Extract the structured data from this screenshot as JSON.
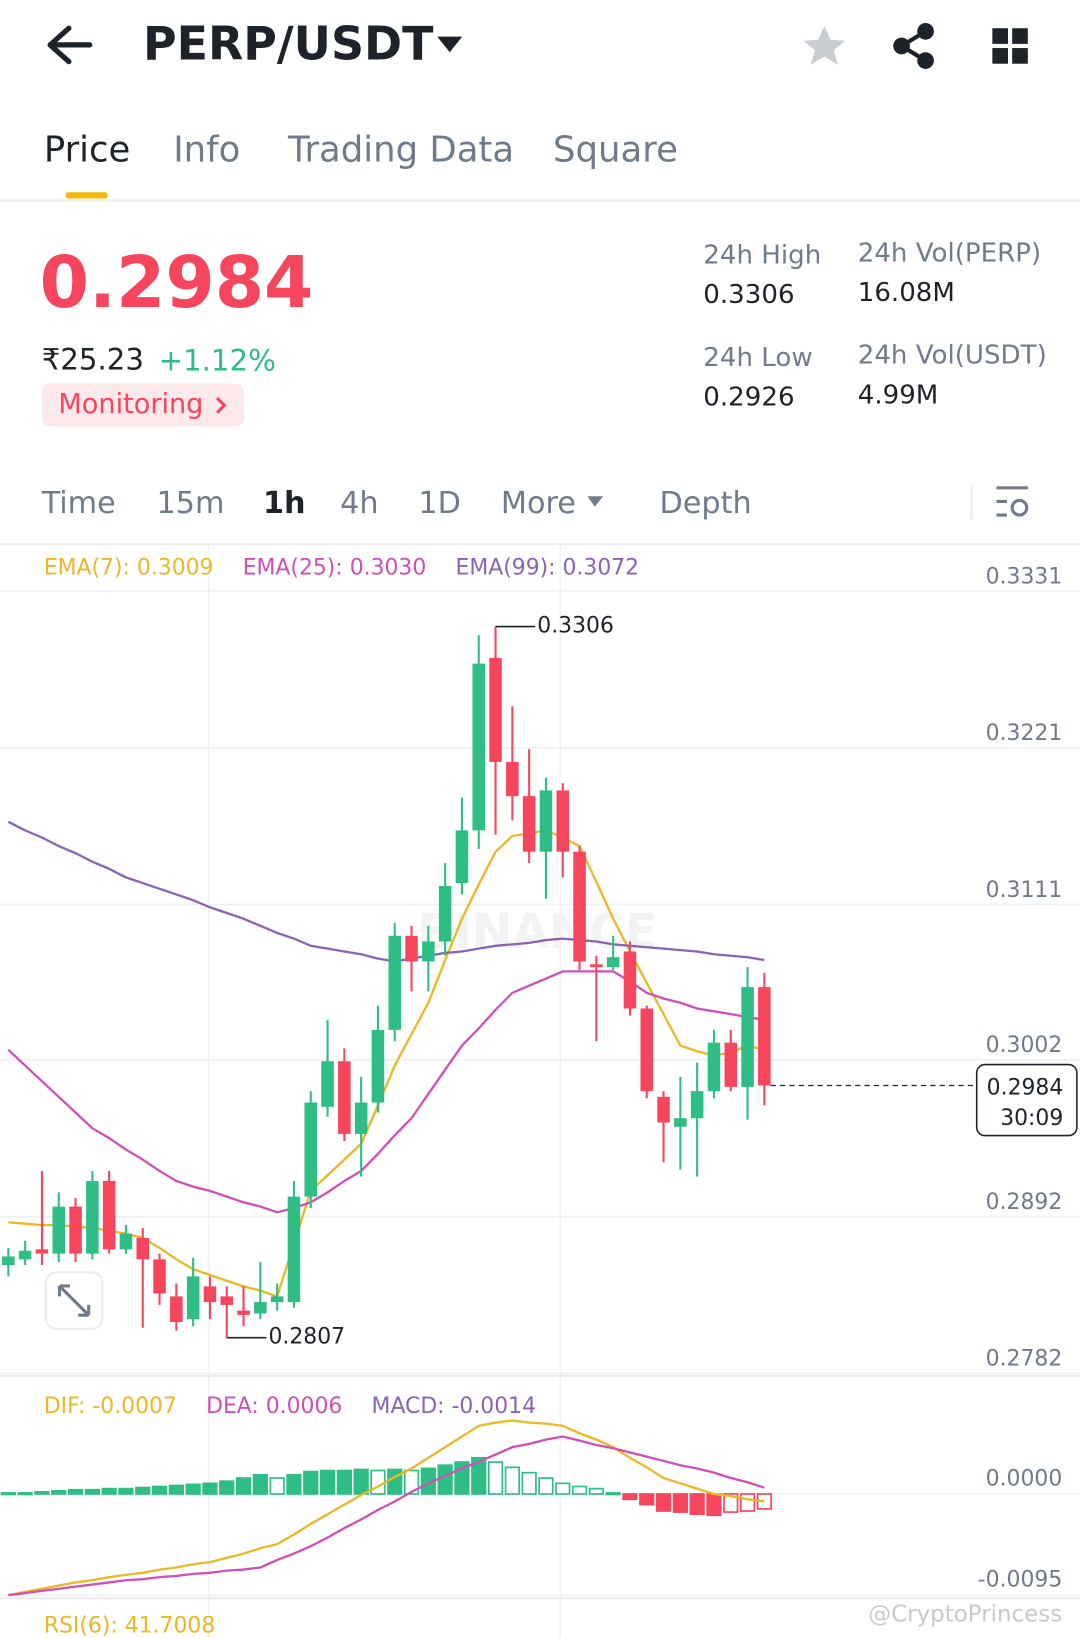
{
  "header": {
    "pair": "PERP/USDT"
  },
  "tabs": [
    "Price",
    "Info",
    "Trading Data",
    "Square"
  ],
  "price": {
    "last": "0.2984",
    "inr": "₹25.23",
    "change": "+1.12%",
    "monitoring": "Monitoring"
  },
  "stats": [
    {
      "label": "24h High",
      "value": "0.3306"
    },
    {
      "label": "24h Vol(PERP)",
      "value": "16.08M"
    },
    {
      "label": "24h Low",
      "value": "0.2926"
    },
    {
      "label": "24h Vol(USDT)",
      "value": "4.99M"
    }
  ],
  "intervals": [
    "Time",
    "15m",
    "1h",
    "4h",
    "1D",
    "More",
    "Depth"
  ],
  "watermark": "BINANCE",
  "credit": "@CryptoPrincess",
  "chart_data": [
    {
      "type": "candlestick",
      "up_color": "#2ebd85",
      "down_color": "#f6465d",
      "open": [
        0.2858,
        0.2862,
        0.2869,
        0.2866,
        0.2899,
        0.2866,
        0.2917,
        0.2869,
        0.2877,
        0.2862,
        0.2836,
        0.282,
        0.2843,
        0.2836,
        0.2826,
        0.2824,
        0.2832,
        0.2832,
        0.2906,
        0.2969,
        0.3001,
        0.295,
        0.2972,
        0.3023,
        0.3089,
        0.3071,
        0.3085,
        0.3126,
        0.3163,
        0.3284,
        0.3211,
        0.3187,
        0.3148,
        0.3191,
        0.3148,
        0.3069,
        0.3067,
        0.3078,
        0.3038,
        0.2976,
        0.2955,
        0.2961,
        0.298,
        0.3014,
        0.2983,
        0.3053
      ],
      "high": [
        0.287,
        0.2875,
        0.2924,
        0.2909,
        0.2905,
        0.2924,
        0.2924,
        0.2886,
        0.2884,
        0.2866,
        0.2845,
        0.2863,
        0.285,
        0.2843,
        0.2843,
        0.286,
        0.2845,
        0.2917,
        0.298,
        0.303,
        0.301,
        0.299,
        0.304,
        0.3098,
        0.3096,
        0.3096,
        0.314,
        0.3186,
        0.33,
        0.3306,
        0.325,
        0.322,
        0.32,
        0.3196,
        0.3152,
        0.3075,
        0.3089,
        0.3085,
        0.304,
        0.298,
        0.299,
        0.3,
        0.3023,
        0.3023,
        0.3067,
        0.3063
      ],
      "low": [
        0.285,
        0.2858,
        0.2858,
        0.286,
        0.286,
        0.2862,
        0.2866,
        0.2866,
        0.2814,
        0.283,
        0.2812,
        0.2815,
        0.282,
        0.2807,
        0.2815,
        0.282,
        0.2826,
        0.2828,
        0.2898,
        0.2962,
        0.2945,
        0.292,
        0.2965,
        0.3015,
        0.305,
        0.305,
        0.3075,
        0.3118,
        0.315,
        0.316,
        0.317,
        0.314,
        0.3115,
        0.313,
        0.3065,
        0.3015,
        0.3065,
        0.3033,
        0.2975,
        0.293,
        0.2925,
        0.292,
        0.2975,
        0.298,
        0.296,
        0.297
      ],
      "close": [
        0.2864,
        0.2868,
        0.2866,
        0.2899,
        0.2866,
        0.2917,
        0.2869,
        0.288,
        0.2862,
        0.2838,
        0.2818,
        0.285,
        0.2832,
        0.283,
        0.2823,
        0.2832,
        0.2836,
        0.2906,
        0.2972,
        0.3001,
        0.295,
        0.2972,
        0.3023,
        0.3089,
        0.3071,
        0.3085,
        0.3124,
        0.3163,
        0.328,
        0.3211,
        0.3187,
        0.3148,
        0.3191,
        0.3148,
        0.3071,
        0.3067,
        0.3074,
        0.3038,
        0.298,
        0.2958,
        0.2961,
        0.298,
        0.3014,
        0.2983,
        0.3053,
        0.2984
      ],
      "series": [
        {
          "name": "EMA(7): 0.3009",
          "color": "#e9b824",
          "values": [
            0.2888,
            0.2887,
            0.2886,
            0.2886,
            0.2885,
            0.2884,
            0.2882,
            0.288,
            0.2877,
            0.287,
            0.2862,
            0.2855,
            0.2851,
            0.2847,
            0.2843,
            0.284,
            0.2836,
            0.2873,
            0.291,
            0.2921,
            0.2932,
            0.2943,
            0.297,
            0.2998,
            0.302,
            0.3042,
            0.3072,
            0.3101,
            0.3125,
            0.3148,
            0.3159,
            0.3161,
            0.3163,
            0.3158,
            0.3152,
            0.3127,
            0.3101,
            0.3078,
            0.3056,
            0.3034,
            0.3012,
            0.3008,
            0.3005,
            0.3007,
            0.3012,
            0.3009
          ]
        },
        {
          "name": "EMA(25): 0.3030",
          "color": "#cf4fb6",
          "values": [
            0.3009,
            0.2998,
            0.2987,
            0.2976,
            0.2965,
            0.2954,
            0.2947,
            0.2939,
            0.2932,
            0.2924,
            0.2917,
            0.2913,
            0.291,
            0.2906,
            0.2902,
            0.2899,
            0.2895,
            0.2898,
            0.2902,
            0.2909,
            0.2917,
            0.2924,
            0.2936,
            0.2949,
            0.2961,
            0.2978,
            0.2995,
            0.3012,
            0.3024,
            0.3037,
            0.3049,
            0.3054,
            0.3059,
            0.3064,
            0.3064,
            0.3064,
            0.3064,
            0.3057,
            0.3049,
            0.3045,
            0.3042,
            0.3038,
            0.3036,
            0.3034,
            0.3032,
            0.303
          ]
        },
        {
          "name": "EMA(99): 0.3072",
          "color": "#8b63b1",
          "values": [
            0.3169,
            0.3163,
            0.3158,
            0.3152,
            0.3147,
            0.3141,
            0.3136,
            0.313,
            0.3126,
            0.3122,
            0.3118,
            0.3114,
            0.3109,
            0.3105,
            0.3101,
            0.3096,
            0.3091,
            0.3087,
            0.3082,
            0.308,
            0.3078,
            0.3076,
            0.3073,
            0.3071,
            0.3073,
            0.3075,
            0.3077,
            0.3078,
            0.308,
            0.3082,
            0.3083,
            0.3084,
            0.3086,
            0.3087,
            0.3086,
            0.3085,
            0.3083,
            0.3082,
            0.3081,
            0.308,
            0.3079,
            0.3078,
            0.3076,
            0.3075,
            0.3074,
            0.3072
          ]
        }
      ],
      "ylim": [
        0.2781,
        0.3363
      ],
      "yticks": [
        0.3331,
        0.3221,
        0.3111,
        0.3002,
        0.2892,
        0.2782
      ],
      "grid": true,
      "high_label": "0.3306",
      "low_label": "0.2807",
      "last_label": "0.2984",
      "countdown": "30:09"
    },
    {
      "type": "macd",
      "series": [
        {
          "name": "DIF: -0.0007",
          "color": "#e9b824",
          "values": [
            -0.0095,
            -0.0092,
            -0.0089,
            -0.0086,
            -0.0083,
            -0.0081,
            -0.0078,
            -0.0076,
            -0.0074,
            -0.0071,
            -0.0069,
            -0.0066,
            -0.0064,
            -0.006,
            -0.0056,
            -0.0051,
            -0.0047,
            -0.0038,
            -0.0028,
            -0.0019,
            -0.001,
            -0.0001,
            0.0007,
            0.0016,
            0.0024,
            0.0034,
            0.0044,
            0.0054,
            0.0064,
            0.0067,
            0.0069,
            0.0067,
            0.0066,
            0.0064,
            0.0057,
            0.0051,
            0.0044,
            0.0034,
            0.0025,
            0.0015,
            0.001,
            0.0005,
            0.0,
            -0.0002,
            -0.0005,
            -0.0007
          ]
        },
        {
          "name": "DEA: 0.0006",
          "color": "#cf4fb6",
          "values": [
            -0.0095,
            -0.0093,
            -0.0091,
            -0.0089,
            -0.0087,
            -0.0085,
            -0.0083,
            -0.0081,
            -0.008,
            -0.0078,
            -0.0077,
            -0.0075,
            -0.0074,
            -0.0072,
            -0.0071,
            -0.0069,
            -0.0062,
            -0.0056,
            -0.0049,
            -0.0041,
            -0.0032,
            -0.0024,
            -0.0015,
            -0.0007,
            0.0002,
            0.001,
            0.0017,
            0.0024,
            0.003,
            0.0037,
            0.0044,
            0.0047,
            0.0051,
            0.0054,
            0.005,
            0.0046,
            0.0043,
            0.0039,
            0.0035,
            0.0031,
            0.0027,
            0.0024,
            0.002,
            0.0015,
            0.0011,
            0.0006
          ]
        }
      ],
      "histogram": {
        "name": "MACD: -0.0014",
        "color": "#8b63b1",
        "up_color": "#2ebd85",
        "down_color": "#f6465d",
        "values": [
          0.0001,
          0.0001,
          0.0002,
          0.0003,
          0.0004,
          0.0004,
          0.0005,
          0.0005,
          0.0006,
          0.0007,
          0.0008,
          0.0009,
          0.001,
          0.0012,
          0.0015,
          0.0018,
          0.0015,
          0.0018,
          0.0021,
          0.0022,
          0.0022,
          0.0023,
          0.0022,
          0.0023,
          0.0022,
          0.0024,
          0.0027,
          0.003,
          0.0034,
          0.003,
          0.0025,
          0.002,
          0.0015,
          0.001,
          0.0007,
          0.0005,
          0.0001,
          -0.0005,
          -0.001,
          -0.0016,
          -0.0017,
          -0.0019,
          -0.002,
          -0.0017,
          -0.0016,
          -0.0014
        ]
      },
      "ylim": [
        -0.0095,
        0.0108
      ],
      "yticks": [
        {
          "value": 0,
          "label": "0.0000"
        },
        -0.0095
      ],
      "grid": true,
      "rsi_label": "RSI(6): 41.7008"
    }
  ]
}
